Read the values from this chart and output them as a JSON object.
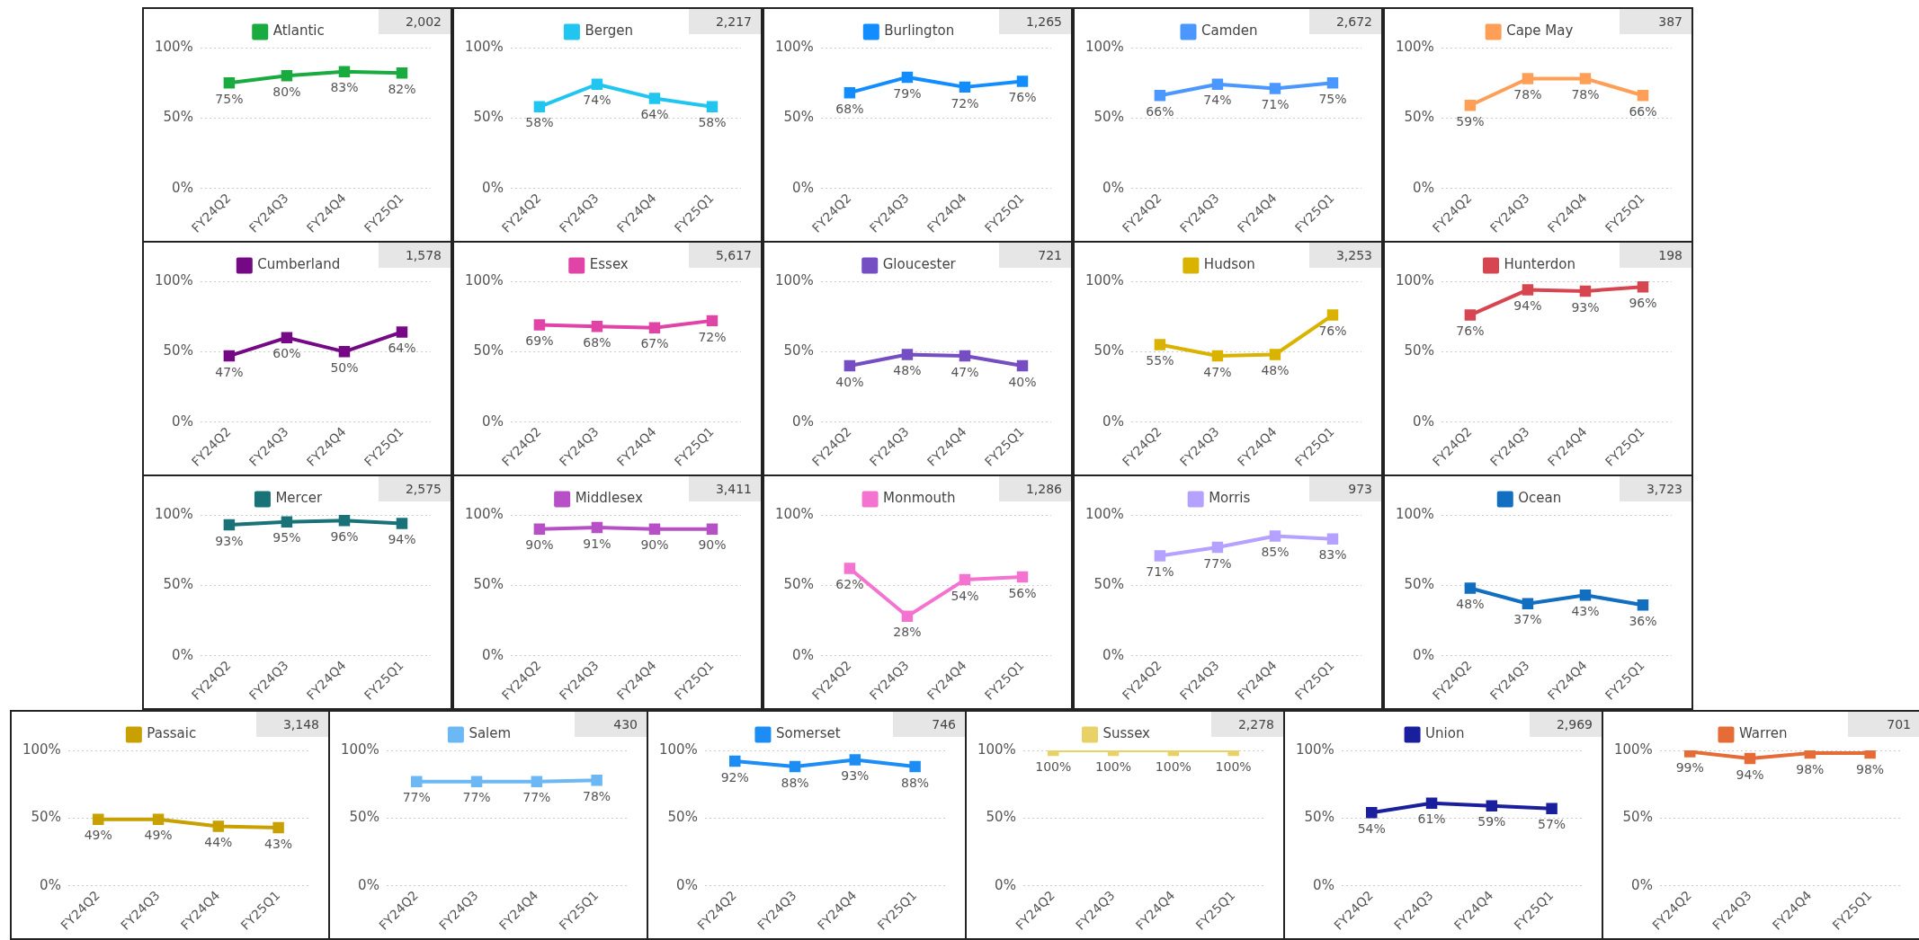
{
  "chart_data": [
    {
      "type": "line",
      "categories": [
        "FY24Q2",
        "FY24Q3",
        "FY24Q4",
        "FY25Q1"
      ],
      "series": [
        {
          "name": "Atlantic",
          "color": "#1aab40",
          "values": [
            75,
            80,
            83,
            82
          ],
          "value_labels": [
            "75%",
            "80%",
            "83%",
            "82%"
          ]
        }
      ],
      "ylim": [
        0,
        100
      ],
      "yticks": [
        {
          "value": 0,
          "label": "0%"
        },
        {
          "value": 50,
          "label": "50%"
        },
        {
          "value": 100,
          "label": "100%"
        }
      ],
      "grid": "y",
      "legend": "top",
      "marker": "square",
      "annotations": [
        "2,002"
      ]
    },
    {
      "type": "line",
      "categories": [
        "FY24Q2",
        "FY24Q3",
        "FY24Q4",
        "FY25Q1"
      ],
      "series": [
        {
          "name": "Bergen",
          "color": "#20c6ef",
          "values": [
            58,
            74,
            64,
            58
          ],
          "value_labels": [
            "58%",
            "74%",
            "64%",
            "58%"
          ]
        }
      ],
      "ylim": [
        0,
        100
      ],
      "yticks": [
        {
          "value": 0,
          "label": "0%"
        },
        {
          "value": 50,
          "label": "50%"
        },
        {
          "value": 100,
          "label": "100%"
        }
      ],
      "grid": "y",
      "legend": "top",
      "marker": "square",
      "annotations": [
        "2,217"
      ]
    },
    {
      "type": "line",
      "categories": [
        "FY24Q2",
        "FY24Q3",
        "FY24Q4",
        "FY25Q1"
      ],
      "series": [
        {
          "name": "Burlington",
          "color": "#118dff",
          "values": [
            68,
            79,
            72,
            76
          ],
          "value_labels": [
            "68%",
            "79%",
            "72%",
            "76%"
          ]
        }
      ],
      "ylim": [
        0,
        100
      ],
      "yticks": [
        {
          "value": 0,
          "label": "0%"
        },
        {
          "value": 50,
          "label": "50%"
        },
        {
          "value": 100,
          "label": "100%"
        }
      ],
      "grid": "y",
      "legend": "top",
      "marker": "square",
      "annotations": [
        "1,265"
      ]
    },
    {
      "type": "line",
      "categories": [
        "FY24Q2",
        "FY24Q3",
        "FY24Q4",
        "FY25Q1"
      ],
      "series": [
        {
          "name": "Camden",
          "color": "#4a97ff",
          "values": [
            66,
            74,
            71,
            75
          ],
          "value_labels": [
            "66%",
            "74%",
            "71%",
            "75%"
          ]
        }
      ],
      "ylim": [
        0,
        100
      ],
      "yticks": [
        {
          "value": 0,
          "label": "0%"
        },
        {
          "value": 50,
          "label": "50%"
        },
        {
          "value": 100,
          "label": "100%"
        }
      ],
      "grid": "y",
      "legend": "top",
      "marker": "square",
      "annotations": [
        "2,672"
      ]
    },
    {
      "type": "line",
      "categories": [
        "FY24Q2",
        "FY24Q3",
        "FY24Q4",
        "FY25Q1"
      ],
      "series": [
        {
          "name": "Cape May",
          "color": "#ff9f57",
          "values": [
            59,
            78,
            78,
            66
          ],
          "value_labels": [
            "59%",
            "78%",
            "78%",
            "66%"
          ]
        }
      ],
      "ylim": [
        0,
        100
      ],
      "yticks": [
        {
          "value": 0,
          "label": "0%"
        },
        {
          "value": 50,
          "label": "50%"
        },
        {
          "value": 100,
          "label": "100%"
        }
      ],
      "grid": "y",
      "legend": "top",
      "marker": "square",
      "annotations": [
        "387"
      ]
    },
    {
      "type": "line",
      "categories": [
        "FY24Q2",
        "FY24Q3",
        "FY24Q4",
        "FY25Q1"
      ],
      "series": [
        {
          "name": "Cumberland",
          "color": "#750985",
          "values": [
            47,
            60,
            50,
            64
          ],
          "value_labels": [
            "47%",
            "60%",
            "50%",
            "64%"
          ]
        }
      ],
      "ylim": [
        0,
        100
      ],
      "yticks": [
        {
          "value": 0,
          "label": "0%"
        },
        {
          "value": 50,
          "label": "50%"
        },
        {
          "value": 100,
          "label": "100%"
        }
      ],
      "grid": "y",
      "legend": "top",
      "marker": "square",
      "annotations": [
        "1,578"
      ]
    },
    {
      "type": "line",
      "categories": [
        "FY24Q2",
        "FY24Q3",
        "FY24Q4",
        "FY25Q1"
      ],
      "series": [
        {
          "name": "Essex",
          "color": "#e044a7",
          "values": [
            69,
            68,
            67,
            72
          ],
          "value_labels": [
            "69%",
            "68%",
            "67%",
            "72%"
          ]
        }
      ],
      "ylim": [
        0,
        100
      ],
      "yticks": [
        {
          "value": 0,
          "label": "0%"
        },
        {
          "value": 50,
          "label": "50%"
        },
        {
          "value": 100,
          "label": "100%"
        }
      ],
      "grid": "y",
      "legend": "top",
      "marker": "square",
      "annotations": [
        "5,617"
      ]
    },
    {
      "type": "line",
      "categories": [
        "FY24Q2",
        "FY24Q3",
        "FY24Q4",
        "FY25Q1"
      ],
      "series": [
        {
          "name": "Gloucester",
          "color": "#744ec2",
          "values": [
            40,
            48,
            47,
            40
          ],
          "value_labels": [
            "40%",
            "48%",
            "47%",
            "40%"
          ]
        }
      ],
      "ylim": [
        0,
        100
      ],
      "yticks": [
        {
          "value": 0,
          "label": "0%"
        },
        {
          "value": 50,
          "label": "50%"
        },
        {
          "value": 100,
          "label": "100%"
        }
      ],
      "grid": "y",
      "legend": "top",
      "marker": "square",
      "annotations": [
        "721"
      ]
    },
    {
      "type": "line",
      "categories": [
        "FY24Q2",
        "FY24Q3",
        "FY24Q4",
        "FY25Q1"
      ],
      "series": [
        {
          "name": "Hudson",
          "color": "#d9b300",
          "values": [
            55,
            47,
            48,
            76
          ],
          "value_labels": [
            "55%",
            "47%",
            "48%",
            "76%"
          ]
        }
      ],
      "ylim": [
        0,
        100
      ],
      "yticks": [
        {
          "value": 0,
          "label": "0%"
        },
        {
          "value": 50,
          "label": "50%"
        },
        {
          "value": 100,
          "label": "100%"
        }
      ],
      "grid": "y",
      "legend": "top",
      "marker": "square",
      "annotations": [
        "3,253"
      ]
    },
    {
      "type": "line",
      "categories": [
        "FY24Q2",
        "FY24Q3",
        "FY24Q4",
        "FY25Q1"
      ],
      "series": [
        {
          "name": "Hunterdon",
          "color": "#d64550",
          "values": [
            76,
            94,
            93,
            96
          ],
          "value_labels": [
            "76%",
            "94%",
            "93%",
            "96%"
          ]
        }
      ],
      "ylim": [
        0,
        100
      ],
      "yticks": [
        {
          "value": 0,
          "label": "0%"
        },
        {
          "value": 50,
          "label": "50%"
        },
        {
          "value": 100,
          "label": "100%"
        }
      ],
      "grid": "y",
      "legend": "top",
      "marker": "square",
      "annotations": [
        "198"
      ]
    },
    {
      "type": "line",
      "categories": [
        "FY24Q2",
        "FY24Q3",
        "FY24Q4",
        "FY25Q1"
      ],
      "series": [
        {
          "name": "Mercer",
          "color": "#197278",
          "values": [
            93,
            95,
            96,
            94
          ],
          "value_labels": [
            "93%",
            "95%",
            "96%",
            "94%"
          ]
        }
      ],
      "ylim": [
        0,
        100
      ],
      "yticks": [
        {
          "value": 0,
          "label": "0%"
        },
        {
          "value": 50,
          "label": "50%"
        },
        {
          "value": 100,
          "label": "100%"
        }
      ],
      "grid": "y",
      "legend": "top",
      "marker": "square",
      "annotations": [
        "2,575"
      ]
    },
    {
      "type": "line",
      "categories": [
        "FY24Q2",
        "FY24Q3",
        "FY24Q4",
        "FY25Q1"
      ],
      "series": [
        {
          "name": "Middlesex",
          "color": "#b750c6",
          "values": [
            90,
            91,
            90,
            90
          ],
          "value_labels": [
            "90%",
            "91%",
            "90%",
            "90%"
          ]
        }
      ],
      "ylim": [
        0,
        100
      ],
      "yticks": [
        {
          "value": 0,
          "label": "0%"
        },
        {
          "value": 50,
          "label": "50%"
        },
        {
          "value": 100,
          "label": "100%"
        }
      ],
      "grid": "y",
      "legend": "top",
      "marker": "square",
      "annotations": [
        "3,411"
      ]
    },
    {
      "type": "line",
      "categories": [
        "FY24Q2",
        "FY24Q3",
        "FY24Q4",
        "FY25Q1"
      ],
      "series": [
        {
          "name": "Monmouth",
          "color": "#f472d0",
          "values": [
            62,
            28,
            54,
            56
          ],
          "value_labels": [
            "62%",
            "28%",
            "54%",
            "56%"
          ]
        }
      ],
      "ylim": [
        0,
        100
      ],
      "yticks": [
        {
          "value": 0,
          "label": "0%"
        },
        {
          "value": 50,
          "label": "50%"
        },
        {
          "value": 100,
          "label": "100%"
        }
      ],
      "grid": "y",
      "legend": "top",
      "marker": "square",
      "annotations": [
        "1,286"
      ]
    },
    {
      "type": "line",
      "categories": [
        "FY24Q2",
        "FY24Q3",
        "FY24Q4",
        "FY25Q1"
      ],
      "series": [
        {
          "name": "Morris",
          "color": "#b5a1ff",
          "values": [
            71,
            77,
            85,
            83
          ],
          "value_labels": [
            "71%",
            "77%",
            "85%",
            "83%"
          ]
        }
      ],
      "ylim": [
        0,
        100
      ],
      "yticks": [
        {
          "value": 0,
          "label": "0%"
        },
        {
          "value": 50,
          "label": "50%"
        },
        {
          "value": 100,
          "label": "100%"
        }
      ],
      "grid": "y",
      "legend": "top",
      "marker": "square",
      "annotations": [
        "973"
      ]
    },
    {
      "type": "line",
      "categories": [
        "FY24Q2",
        "FY24Q3",
        "FY24Q4",
        "FY25Q1"
      ],
      "series": [
        {
          "name": "Ocean",
          "color": "#126ec0",
          "values": [
            48,
            37,
            43,
            36
          ],
          "value_labels": [
            "48%",
            "37%",
            "43%",
            "36%"
          ]
        }
      ],
      "ylim": [
        0,
        100
      ],
      "yticks": [
        {
          "value": 0,
          "label": "0%"
        },
        {
          "value": 50,
          "label": "50%"
        },
        {
          "value": 100,
          "label": "100%"
        }
      ],
      "grid": "y",
      "legend": "top",
      "marker": "square",
      "annotations": [
        "3,723"
      ]
    },
    {
      "type": "line",
      "categories": [
        "FY24Q2",
        "FY24Q3",
        "FY24Q4",
        "FY25Q1"
      ],
      "series": [
        {
          "name": "Passaic",
          "color": "#c8a000",
          "values": [
            49,
            49,
            44,
            43
          ],
          "value_labels": [
            "49%",
            "49%",
            "44%",
            "43%"
          ]
        }
      ],
      "ylim": [
        0,
        100
      ],
      "yticks": [
        {
          "value": 0,
          "label": "0%"
        },
        {
          "value": 50,
          "label": "50%"
        },
        {
          "value": 100,
          "label": "100%"
        }
      ],
      "grid": "y",
      "legend": "top",
      "marker": "square",
      "annotations": [
        "3,148"
      ]
    },
    {
      "type": "line",
      "categories": [
        "FY24Q2",
        "FY24Q3",
        "FY24Q4",
        "FY25Q1"
      ],
      "series": [
        {
          "name": "Salem",
          "color": "#6cb8f5",
          "values": [
            77,
            77,
            77,
            78
          ],
          "value_labels": [
            "77%",
            "77%",
            "77%",
            "78%"
          ]
        }
      ],
      "ylim": [
        0,
        100
      ],
      "yticks": [
        {
          "value": 0,
          "label": "0%"
        },
        {
          "value": 50,
          "label": "50%"
        },
        {
          "value": 100,
          "label": "100%"
        }
      ],
      "grid": "y",
      "legend": "top",
      "marker": "square",
      "annotations": [
        "430"
      ]
    },
    {
      "type": "line",
      "categories": [
        "FY24Q2",
        "FY24Q3",
        "FY24Q4",
        "FY25Q1"
      ],
      "series": [
        {
          "name": "Somerset",
          "color": "#1c8df5",
          "values": [
            92,
            88,
            93,
            88
          ],
          "value_labels": [
            "92%",
            "88%",
            "93%",
            "88%"
          ]
        }
      ],
      "ylim": [
        0,
        100
      ],
      "yticks": [
        {
          "value": 0,
          "label": "0%"
        },
        {
          "value": 50,
          "label": "50%"
        },
        {
          "value": 100,
          "label": "100%"
        }
      ],
      "grid": "y",
      "legend": "top",
      "marker": "square",
      "annotations": [
        "746"
      ]
    },
    {
      "type": "line",
      "categories": [
        "FY24Q2",
        "FY24Q3",
        "FY24Q4",
        "FY25Q1"
      ],
      "series": [
        {
          "name": "Sussex",
          "color": "#e8d166",
          "values": [
            100,
            100,
            100,
            100
          ],
          "value_labels": [
            "100%",
            "100%",
            "100%",
            "100%"
          ]
        }
      ],
      "ylim": [
        0,
        100
      ],
      "yticks": [
        {
          "value": 0,
          "label": "0%"
        },
        {
          "value": 50,
          "label": "50%"
        },
        {
          "value": 100,
          "label": "100%"
        }
      ],
      "grid": "y",
      "legend": "top",
      "marker": "square",
      "annotations": [
        "2,278"
      ]
    },
    {
      "type": "line",
      "categories": [
        "FY24Q2",
        "FY24Q3",
        "FY24Q4",
        "FY25Q1"
      ],
      "series": [
        {
          "name": "Union",
          "color": "#1a1f9e",
          "values": [
            54,
            61,
            59,
            57
          ],
          "value_labels": [
            "54%",
            "61%",
            "59%",
            "57%"
          ]
        }
      ],
      "ylim": [
        0,
        100
      ],
      "yticks": [
        {
          "value": 0,
          "label": "0%"
        },
        {
          "value": 50,
          "label": "50%"
        },
        {
          "value": 100,
          "label": "100%"
        }
      ],
      "grid": "y",
      "legend": "top",
      "marker": "square",
      "annotations": [
        "2,969"
      ]
    },
    {
      "type": "line",
      "categories": [
        "FY24Q2",
        "FY24Q3",
        "FY24Q4",
        "FY25Q1"
      ],
      "series": [
        {
          "name": "Warren",
          "color": "#e66c37",
          "values": [
            99,
            94,
            98,
            98
          ],
          "value_labels": [
            "99%",
            "94%",
            "98%",
            "98%"
          ]
        }
      ],
      "ylim": [
        0,
        100
      ],
      "yticks": [
        {
          "value": 0,
          "label": "0%"
        },
        {
          "value": 50,
          "label": "50%"
        },
        {
          "value": 100,
          "label": "100%"
        }
      ],
      "grid": "y",
      "legend": "top",
      "marker": "square",
      "annotations": [
        "701"
      ]
    }
  ]
}
